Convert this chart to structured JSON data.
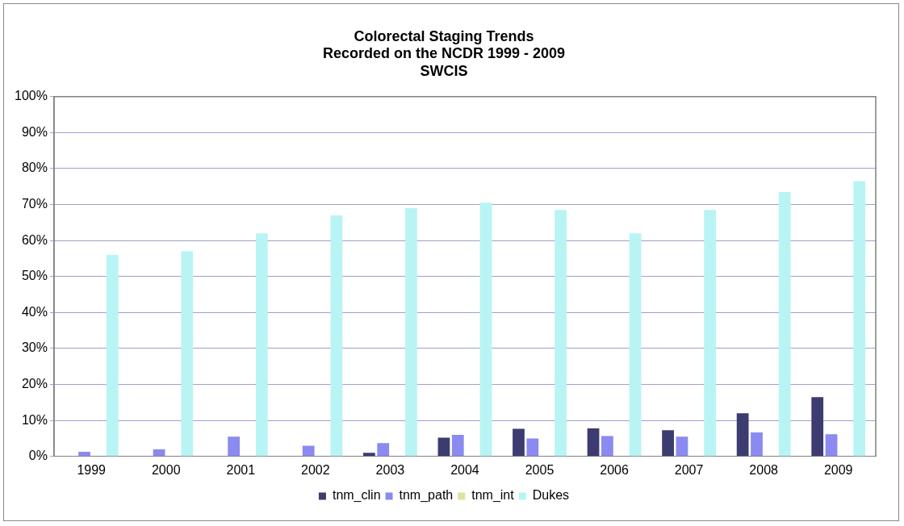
{
  "chart_data": {
    "type": "bar",
    "title": "Colorectal Staging Trends\nRecorded on the NCDR 1999 - 2009\nSWCIS",
    "categories": [
      "1999",
      "2000",
      "2001",
      "2002",
      "2003",
      "2004",
      "2005",
      "2006",
      "2007",
      "2008",
      "2009"
    ],
    "series": [
      {
        "name": "tnm_clin",
        "color": "#3c3c70",
        "values": [
          0,
          0,
          0,
          0,
          1,
          5.2,
          7.7,
          7.8,
          7.3,
          12,
          16.5
        ]
      },
      {
        "name": "tnm_path",
        "color": "#8a8af0",
        "values": [
          1.3,
          2,
          5.5,
          3,
          3.7,
          6,
          5,
          5.7,
          5.5,
          6.7,
          6.2
        ]
      },
      {
        "name": "tnm_int",
        "color": "#e0e0a0",
        "values": [
          0,
          0,
          0,
          0,
          0,
          0,
          0,
          0,
          0,
          0,
          0
        ]
      },
      {
        "name": "Dukes",
        "color": "#b8f4f4",
        "values": [
          56,
          57,
          62,
          67,
          69,
          70.5,
          68.5,
          62,
          68.5,
          73.5,
          76.5
        ]
      }
    ],
    "ylim": [
      0,
      100
    ],
    "yticks": [
      {
        "value": 0,
        "label": "0%"
      },
      {
        "value": 10,
        "label": "10%"
      },
      {
        "value": 20,
        "label": "20%"
      },
      {
        "value": 30,
        "label": "30%"
      },
      {
        "value": 40,
        "label": "40%"
      },
      {
        "value": 50,
        "label": "50%"
      },
      {
        "value": 60,
        "label": "60%"
      },
      {
        "value": 70,
        "label": "70%"
      },
      {
        "value": 80,
        "label": "80%"
      },
      {
        "value": 90,
        "label": "90%"
      },
      {
        "value": 100,
        "label": "100%"
      }
    ],
    "grid": "y",
    "legend": "bottom"
  }
}
